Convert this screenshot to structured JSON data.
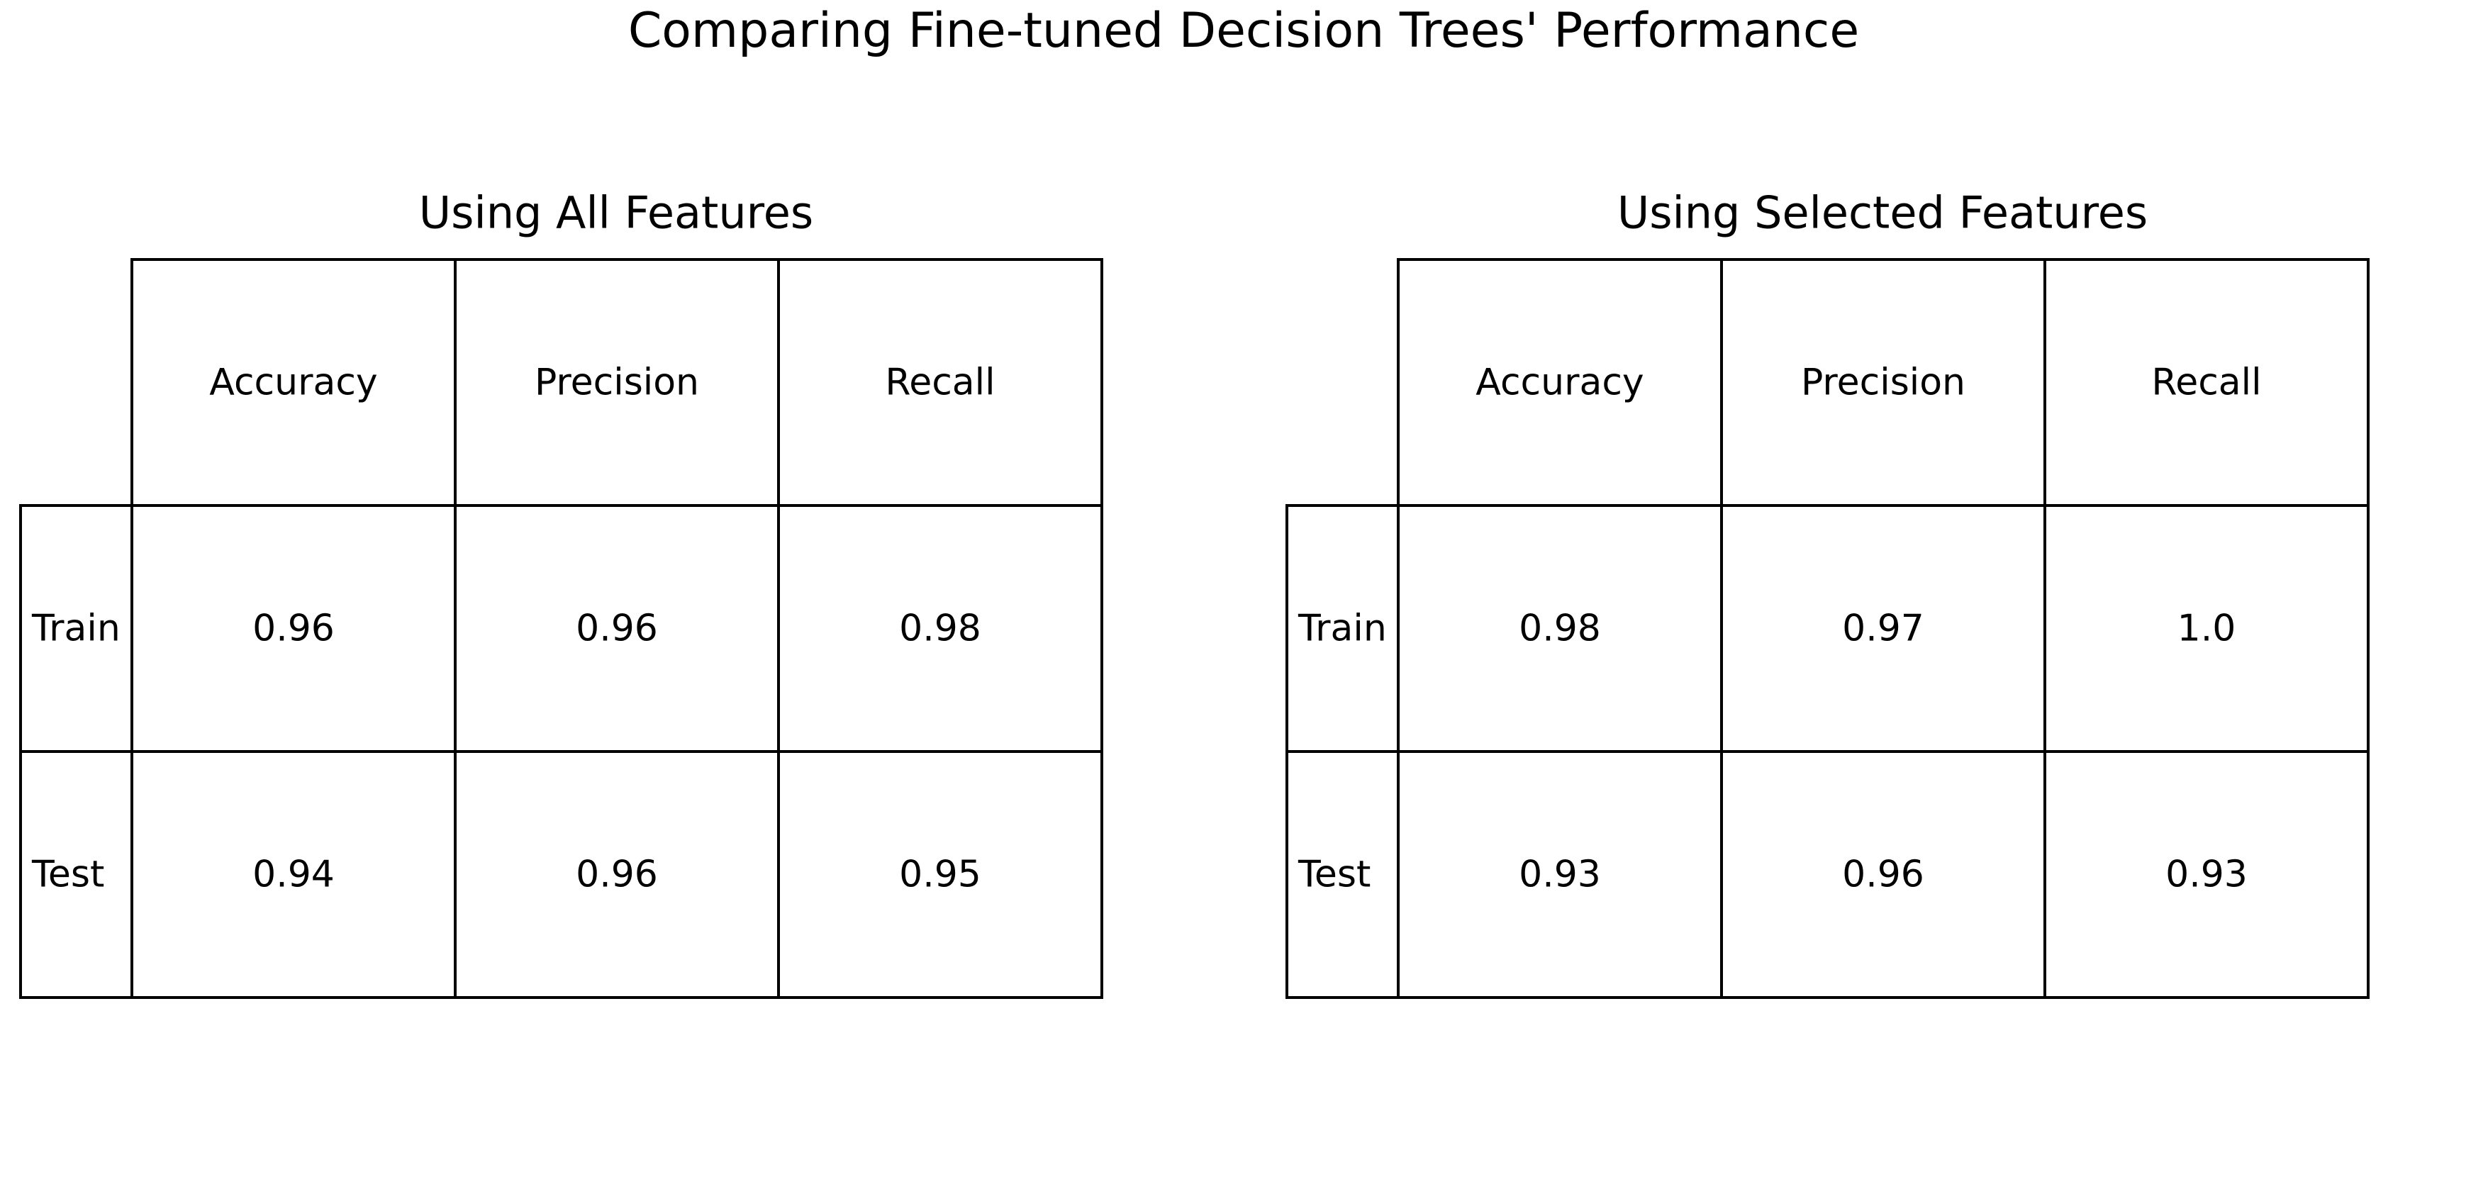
{
  "figure": {
    "title": "Comparing Fine-tuned Decision Trees' Performance",
    "colors": {
      "text": "#000000",
      "cell_border": "#000000",
      "cell_fill": "#ffffff"
    }
  },
  "chart_data": [
    {
      "type": "table",
      "title": "Using All Features",
      "columns": [
        "Accuracy",
        "Precision",
        "Recall"
      ],
      "rows": [
        {
          "label": "Train",
          "values": [
            "0.96",
            "0.96",
            "0.98"
          ]
        },
        {
          "label": "Test",
          "values": [
            "0.94",
            "0.96",
            "0.95"
          ]
        }
      ]
    },
    {
      "type": "table",
      "title": "Using Selected Features",
      "columns": [
        "Accuracy",
        "Precision",
        "Recall"
      ],
      "rows": [
        {
          "label": "Train",
          "values": [
            "0.98",
            "0.97",
            "1.0"
          ]
        },
        {
          "label": "Test",
          "values": [
            "0.93",
            "0.96",
            "0.93"
          ]
        }
      ]
    }
  ]
}
